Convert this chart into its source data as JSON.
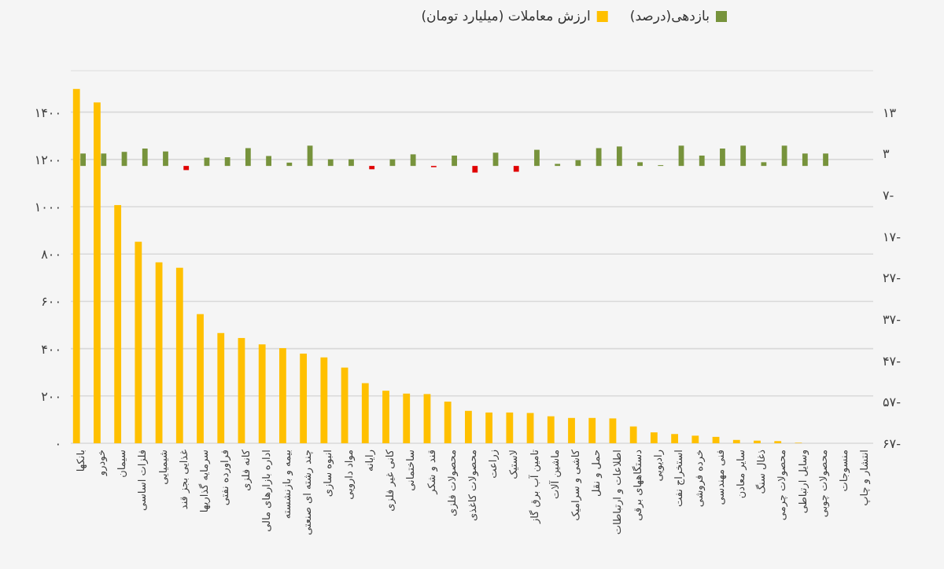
{
  "chart_data": {
    "type": "bar",
    "categories": [
      "بانکها",
      "خودرو",
      "سیمان",
      "فلزات اساسی",
      "شیمیایی",
      "غذایی بجز قند",
      "سرمایه گذاریها",
      "فراورده نفتی",
      "کانه فلزی",
      "اداره بازارهای مالی",
      "بیمه و بازنشسته",
      "چند رشته ای صنعتی",
      "انبوه سازی",
      "مواد دارویی",
      "رایانه",
      "کانی غیر فلزی",
      "ساختمانی",
      "قند و شکر",
      "محصولات فلزی",
      "محصولات کاغذی",
      "زراعت",
      "لاستیک",
      "تامین آب برق گاز",
      "ماشین آلات",
      "کاشی و سرامیک",
      "حمل و نقل",
      "اطلاعات و ارتباطات",
      "دستگاههای برقی",
      "رادیویی",
      "استخراج نفت",
      "خرده فروشی",
      "فنی مهندسی",
      "سایر معادن",
      "ذغال سنگ",
      "محصولات چرمی",
      "وسایل ارتباطی",
      "محصولات چوبی",
      "منسوجات",
      "انتشار و چاپ"
    ],
    "series": [
      {
        "name": "ارزش معاملات (میلیارد تومان)",
        "color": "#ffc000",
        "values": [
          1498,
          1441,
          1007,
          852,
          765,
          742,
          546,
          466,
          445,
          418,
          402,
          379,
          363,
          320,
          254,
          222,
          210,
          208,
          176,
          137,
          130,
          130,
          128,
          114,
          107,
          107,
          105,
          71,
          46,
          39,
          32,
          27,
          14,
          11,
          9,
          2,
          null,
          null,
          0
        ]
      },
      {
        "name": "بازدهی(درصد)",
        "color": "#77933c",
        "axis": "y2",
        "values": [
          3.0,
          3.0,
          3.4,
          4.2,
          3.5,
          -1.0,
          2.0,
          2.1,
          4.3,
          2.4,
          0.8,
          4.9,
          1.6,
          1.6,
          -0.8,
          1.6,
          2.8,
          -0.3,
          2.5,
          -1.6,
          3.2,
          -1.4,
          3.9,
          0.5,
          1.4,
          4.3,
          4.7,
          0.9,
          0.2,
          4.9,
          2.5,
          4.2,
          4.9,
          0.9,
          4.9,
          3.0,
          3.0,
          null,
          null
        ],
        "colors": [
          "#77933c",
          "#77933c",
          "#77933c",
          "#77933c",
          "#77933c",
          "#e00000",
          "#77933c",
          "#77933c",
          "#77933c",
          "#77933c",
          "#77933c",
          "#77933c",
          "#77933c",
          "#77933c",
          "#e00000",
          "#77933c",
          "#77933c",
          "#e00000",
          "#77933c",
          "#e00000",
          "#77933c",
          "#e00000",
          "#77933c",
          "#77933c",
          "#77933c",
          "#77933c",
          "#77933c",
          "#77933c",
          "#77933c",
          "#77933c",
          "#77933c",
          "#77933c",
          "#77933c",
          "#77933c",
          "#77933c",
          "#77933c",
          "#77933c",
          null,
          null
        ]
      }
    ],
    "ylim": [
      0,
      1575
    ],
    "yticks": [
      {
        "value": 0,
        "label": "۰"
      },
      {
        "value": 200,
        "label": "۲۰۰"
      },
      {
        "value": 400,
        "label": "۴۰۰"
      },
      {
        "value": 600,
        "label": "۶۰۰"
      },
      {
        "value": 800,
        "label": "۸۰۰"
      },
      {
        "value": 1000,
        "label": "۱۰۰۰"
      },
      {
        "value": 1200,
        "label": "۱۲۰۰"
      },
      {
        "value": 1400,
        "label": "۱۴۰۰"
      }
    ],
    "y2lim": [
      -67,
      23
    ],
    "y2ticks": [
      {
        "value": -67,
        "label": "۶۷-"
      },
      {
        "value": -57,
        "label": "۵۷-"
      },
      {
        "value": -47,
        "label": "۴۷-"
      },
      {
        "value": -37,
        "label": "۳۷-"
      },
      {
        "value": -27,
        "label": "۲۷-"
      },
      {
        "value": -17,
        "label": "۱۷-"
      },
      {
        "value": -7,
        "label": "۷-"
      },
      {
        "value": 3,
        "label": "۳"
      },
      {
        "value": 13,
        "label": "۱۳"
      }
    ],
    "grid": "y",
    "legend": "top"
  }
}
